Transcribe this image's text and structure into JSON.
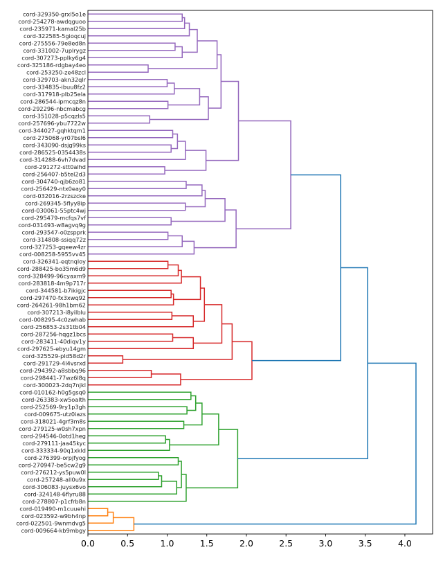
{
  "chart_data": {
    "type": "dendrogram",
    "orientation": "left",
    "title": "",
    "xlabel": "",
    "ylabel": "",
    "xlim": [
      0,
      4.35
    ],
    "x_ticks": [
      "0.0",
      "0.5",
      "1.0",
      "1.5",
      "2.0",
      "2.5",
      "3.0",
      "3.5",
      "4.0"
    ],
    "above_threshold_color": "#1f77b4",
    "labels": [
      "cord-329350-grxl5o1e",
      "cord-254278-awdqguoo",
      "cord-235971-kamal25b",
      "cord-322585-5gioqcuj",
      "cord-275556-79e8ed8n",
      "cord-331002-7uplrygz",
      "cord-307273-pplky6g4",
      "cord-325186-rdgbay4eo",
      "cord-253250-ze48zcl",
      "cord-329703-akn32qlr",
      "cord-334835-ibuu8fz2",
      "cord-317918-plb25ela",
      "cord-286544-ipmcqz8n",
      "cord-292296-nbcmabcg",
      "cord-351028-p5cqzls5",
      "cord-257696-ybu7722w",
      "cord-344027-gqhktqm1",
      "cord-275068-yr07bsl6",
      "cord-343090-dsjg99ks",
      "cord-286525-0354438s",
      "cord-314288-6vh7dvad",
      "cord-291272-stt0alhd",
      "cord-256407-b5tel2d3",
      "cord-304740-qjb6zo81",
      "cord-256429-ntx0eay0",
      "cord-032016-2rzszcke",
      "cord-269345-5flyy8ip",
      "cord-030061-55ptc4wj",
      "cord-295479-mcfqs7vf",
      "cord-031493-w8agvq9g",
      "cord-293547-o0zspprk",
      "cord-314808-ssiqq72z",
      "cord-327253-gqeew4zr",
      "cord-008258-5955vv45",
      "cord-326341-eqtnqloy",
      "cord-288425-bo35m6d9",
      "cord-328499-96cyaxm9",
      "cord-283818-4m9p717r",
      "cord-344581-b7ikigjc",
      "cord-297470-fx3xwq92",
      "cord-264261-98h1bm62",
      "cord-307213-i8yilblu",
      "cord-008295-4c0zwhab",
      "cord-256853-2s31tb04",
      "cord-287256-hqgz1bcs",
      "cord-283411-40diqv1y",
      "cord-297625-ebyu14gm",
      "cord-325529-pld58d2r",
      "cord-291729-4l4vsrxd",
      "cord-294392-a8sbbq96",
      "cord-298441-77wz6l8q",
      "cord-300023-2dq7njkl",
      "cord-010162-h0g5gsq0",
      "cord-263383-xw5oalth",
      "cord-252569-9ry1p3gh",
      "cord-009675-utz0iazs",
      "cord-318021-4grf3m8s",
      "cord-279125-w0sh7xpn",
      "cord-294546-0otd1heg",
      "cord-279111-jaa45kyc",
      "cord-333334-90q1xkld",
      "cord-276399-orpjfyog",
      "cord-270947-be5cw2g9",
      "cord-276212-ys5puw0l",
      "cord-257248-all0u9x",
      "cord-306083-juysx6vo",
      "cord-324148-6flyru88",
      "cord-278807-p1cfrb8n",
      "cord-019490-m1cuuehi",
      "cord-023592-w9bh4np",
      "cord-022501-9wnmdvg5",
      "cord-009664-kb9mbgy"
    ],
    "tree": {
      "h": 4.14,
      "c": [
        {
          "h": 3.53,
          "c": [
            {
              "h": 3.19,
              "c": [
                {
                  "h": 2.56,
                  "color": "#9467bd",
                  "c": [
                    {
                      "h": 1.9,
                      "c": [
                        {
                          "h": 1.68,
                          "c": [
                            {
                              "h": 1.63,
                              "c": [
                                {
                                  "h": 1.38,
                                  "c": [
                                    {
                                      "h": 1.28,
                                      "c": [
                                        {
                                          "h": 1.22,
                                          "c": [
                                            {
                                              "h": 1.19,
                                              "c": [
                                                0,
                                                1
                                              ]
                                            },
                                            2
                                          ]
                                        },
                                        3
                                      ]
                                    },
                                    {
                                      "h": 1.19,
                                      "c": [
                                        {
                                          "h": 1.1,
                                          "c": [
                                            4,
                                            5
                                          ]
                                        },
                                        6
                                      ]
                                    }
                                  ]
                                },
                                {
                                  "h": 0.76,
                                  "c": [
                                    7,
                                    8
                                  ]
                                }
                              ]
                            },
                            {
                              "h": 1.52,
                              "c": [
                                {
                                  "h": 1.41,
                                  "c": [
                                    {
                                      "h": 1.09,
                                      "c": [
                                        {
                                          "h": 1.0,
                                          "c": [
                                            9,
                                            10
                                          ]
                                        },
                                        11
                                      ]
                                    },
                                    {
                                      "h": 1.01,
                                      "c": [
                                        12,
                                        13
                                      ]
                                    }
                                  ]
                                },
                                {
                                  "h": 0.78,
                                  "c": [
                                    14,
                                    15
                                  ]
                                }
                              ]
                            }
                          ]
                        },
                        {
                          "h": 1.49,
                          "c": [
                            {
                              "h": 1.23,
                              "c": [
                                {
                                  "h": 1.13,
                                  "c": [
                                    {
                                      "h": 1.07,
                                      "c": [
                                        16,
                                        17
                                      ]
                                    },
                                    {
                                      "h": 1.05,
                                      "c": [
                                        18,
                                        19
                                      ]
                                    }
                                  ]
                                },
                                20
                              ]
                            },
                            {
                              "h": 0.97,
                              "c": [
                                21,
                                22
                              ]
                            }
                          ]
                        }
                      ]
                    },
                    {
                      "h": 1.87,
                      "c": [
                        {
                          "h": 1.73,
                          "c": [
                            {
                              "h": 1.48,
                              "c": [
                                {
                                  "h": 1.44,
                                  "c": [
                                    {
                                      "h": 1.24,
                                      "c": [
                                        23,
                                        24
                                      ]
                                    },
                                    25
                                  ]
                                },
                                {
                                  "h": 1.23,
                                  "c": [
                                    26,
                                    27
                                  ]
                                }
                              ]
                            },
                            {
                              "h": 1.05,
                              "c": [
                                28,
                                29
                              ]
                            }
                          ]
                        },
                        {
                          "h": 1.34,
                          "c": [
                            {
                              "h": 1.19,
                              "c": [
                                {
                                  "h": 1.01,
                                  "c": [
                                    30,
                                    31
                                  ]
                                },
                                32
                              ]
                            },
                            33
                          ]
                        }
                      ]
                    }
                  ]
                },
                {
                  "h": 2.07,
                  "color": "#d62728",
                  "c": [
                    {
                      "h": 1.82,
                      "c": [
                        {
                          "h": 1.69,
                          "c": [
                            {
                              "h": 1.47,
                              "c": [
                                {
                                  "h": 1.42,
                                  "c": [
                                    {
                                      "h": 1.18,
                                      "c": [
                                        {
                                          "h": 1.14,
                                          "c": [
                                            {
                                              "h": 1.01,
                                              "c": [
                                                34,
                                                35
                                              ]
                                            },
                                            36
                                          ]
                                        },
                                        37
                                      ]
                                    },
                                    {
                                      "h": 1.08,
                                      "c": [
                                        {
                                          "h": 1.05,
                                          "c": [
                                            38,
                                            39
                                          ]
                                        },
                                        40
                                      ]
                                    }
                                  ]
                                },
                                {
                                  "h": 1.33,
                                  "c": [
                                    {
                                      "h": 1.06,
                                      "c": [
                                        41,
                                        42
                                      ]
                                    },
                                    43
                                  ]
                                }
                              ]
                            },
                            {
                              "h": 1.33,
                              "c": [
                                {
                                  "h": 1.07,
                                  "c": [
                                    44,
                                    45
                                  ]
                                },
                                46
                              ]
                            }
                          ]
                        },
                        {
                          "h": 0.44,
                          "c": [
                            47,
                            48
                          ]
                        }
                      ]
                    },
                    {
                      "h": 1.17,
                      "c": [
                        {
                          "h": 0.8,
                          "c": [
                            49,
                            50
                          ]
                        },
                        51
                      ]
                    }
                  ]
                }
              ]
            },
            {
              "h": 1.89,
              "color": "#2ca02c",
              "c": [
                {
                  "h": 1.65,
                  "c": [
                    {
                      "h": 1.44,
                      "c": [
                        {
                          "h": 1.36,
                          "c": [
                            {
                              "h": 1.3,
                              "c": [
                                52,
                                53
                              ]
                            },
                            {
                              "h": 1.25,
                              "c": [
                                54,
                                55
                              ]
                            }
                          ]
                        },
                        {
                          "h": 1.21,
                          "c": [
                            56,
                            57
                          ]
                        }
                      ]
                    },
                    {
                      "h": 1.03,
                      "c": [
                        {
                          "h": 0.98,
                          "c": [
                            58,
                            59
                          ]
                        },
                        60
                      ]
                    }
                  ]
                },
                {
                  "h": 1.24,
                  "c": [
                    {
                      "h": 1.18,
                      "c": [
                        {
                          "h": 1.14,
                          "c": [
                            61,
                            62
                          ]
                        },
                        {
                          "h": 1.12,
                          "c": [
                            {
                              "h": 0.93,
                              "c": [
                                {
                                  "h": 0.89,
                                  "c": [
                                    63,
                                    64
                                  ]
                                },
                                65
                              ]
                            },
                            66
                          ]
                        }
                      ]
                    },
                    67
                  ]
                }
              ]
            }
          ]
        },
        {
          "h": 0.58,
          "color": "#ff7f0e",
          "c": [
            {
              "h": 0.32,
              "c": [
                {
                  "h": 0.25,
                  "c": [
                    68,
                    69
                  ]
                },
                70
              ]
            },
            71
          ]
        }
      ]
    }
  }
}
